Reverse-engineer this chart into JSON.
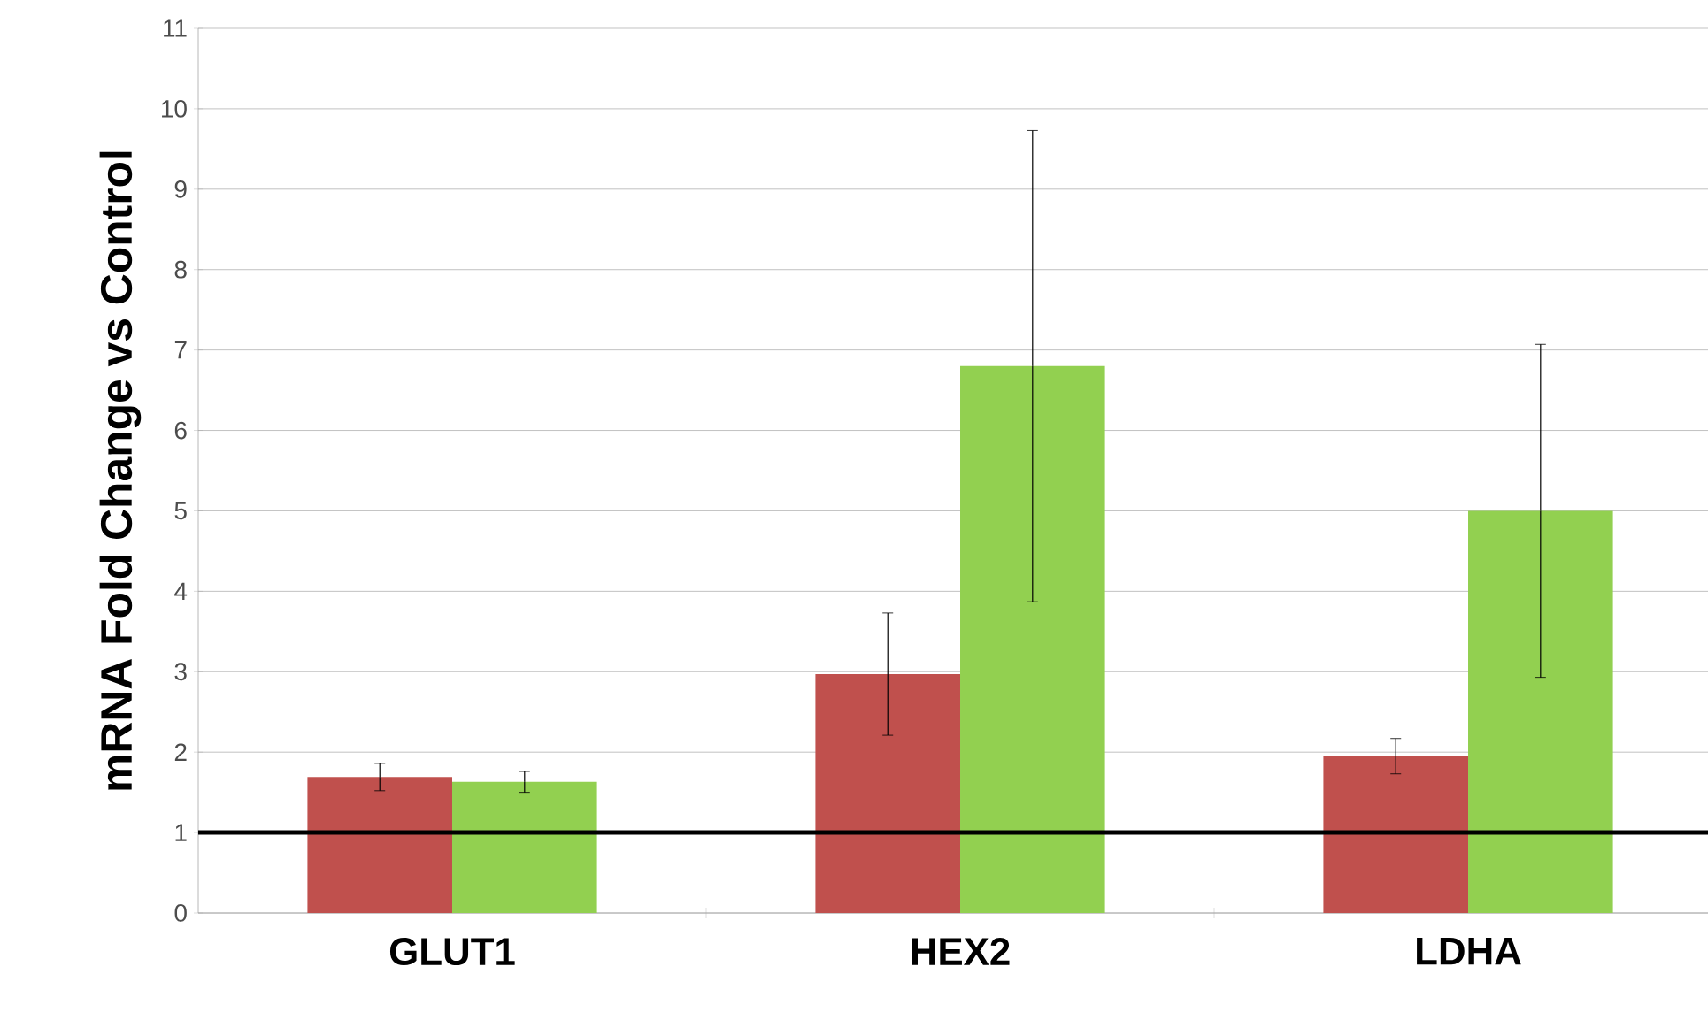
{
  "chart_data": {
    "type": "bar",
    "ylabel": "mRNA Fold Change vs Control",
    "categories": [
      "GLUT1",
      "HEX2",
      "LDHA"
    ],
    "series": [
      {
        "color": "#c0504d",
        "values": [
          1.69,
          2.97,
          1.95
        ],
        "errors": [
          0.17,
          0.76,
          0.22
        ]
      },
      {
        "color": "#92d050",
        "values": [
          1.63,
          6.8,
          5.0
        ],
        "errors": [
          0.13,
          2.93,
          2.07
        ]
      }
    ],
    "ylim": [
      0,
      11
    ],
    "yticks": [
      0,
      1,
      2,
      3,
      4,
      5,
      6,
      7,
      8,
      9,
      10,
      11
    ],
    "grid": "y",
    "ref_lines": [
      {
        "axis": "y",
        "value": 1,
        "color": "#000000"
      }
    ]
  }
}
